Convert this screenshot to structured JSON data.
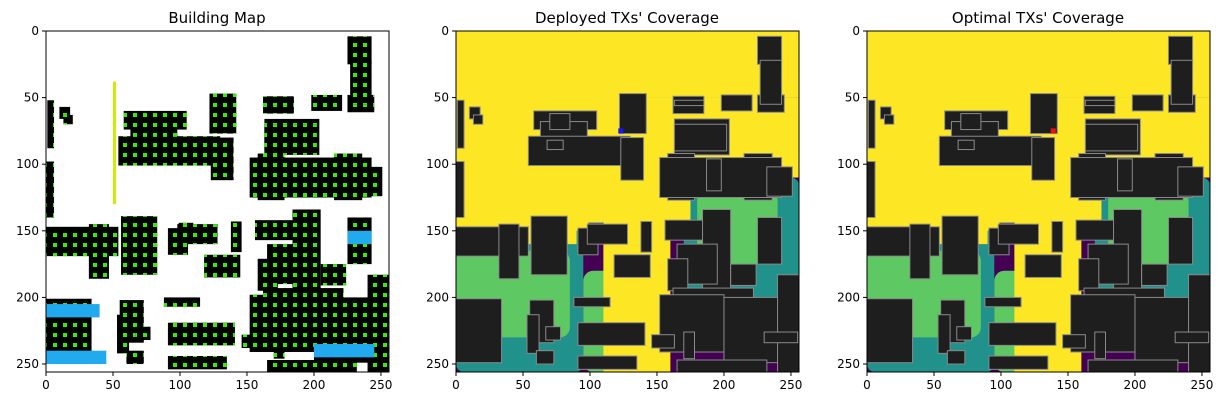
{
  "figure": {
    "panels": [
      {
        "title": "Building Map"
      },
      {
        "title": "Deployed TXs' Coverage"
      },
      {
        "title": "Optimal TXs' Coverage"
      }
    ]
  },
  "chart_data": [
    {
      "type": "heatmap",
      "title": "Building Map",
      "xlabel": "",
      "ylabel": "",
      "xlim": [
        0,
        256
      ],
      "ylim": [
        256,
        0
      ],
      "xticks": [
        0,
        50,
        100,
        150,
        200,
        250
      ],
      "yticks": [
        0,
        50,
        100,
        150,
        200,
        250
      ],
      "background": "#ffffff",
      "colors": {
        "building": "#000000",
        "candidate_site": "#33ee00",
        "candidate_site_alt": "#ccee00",
        "candidate_site_edge": "#22aaee"
      }
    },
    {
      "type": "heatmap",
      "title": "Deployed TXs' Coverage",
      "xlabel": "",
      "ylabel": "",
      "xlim": [
        0,
        256
      ],
      "ylim": [
        256,
        0
      ],
      "xticks": [
        0,
        50,
        100,
        150,
        200,
        250
      ],
      "yticks": [
        0,
        50,
        100,
        150,
        200,
        250
      ],
      "colors": {
        "coverage_high": "#fde725",
        "coverage_mid_high": "#5ec962",
        "coverage_mid": "#21918c",
        "coverage_low": "#440154",
        "building": "#1e1e1e",
        "tx": "#1515ff"
      },
      "tx_positions": [
        {
          "x": 123,
          "y": 75
        }
      ]
    },
    {
      "type": "heatmap",
      "title": "Optimal TXs' Coverage",
      "xlabel": "",
      "ylabel": "",
      "xlim": [
        0,
        256
      ],
      "ylim": [
        256,
        0
      ],
      "xticks": [
        0,
        50,
        100,
        150,
        200,
        250
      ],
      "yticks": [
        0,
        50,
        100,
        150,
        200,
        250
      ],
      "colors": {
        "coverage_high": "#fde725",
        "coverage_mid_high": "#5ec962",
        "coverage_mid": "#21918c",
        "coverage_low": "#440154",
        "building": "#1e1e1e",
        "tx": "#ee1111"
      },
      "tx_positions": [
        {
          "x": 139,
          "y": 75
        }
      ]
    }
  ]
}
